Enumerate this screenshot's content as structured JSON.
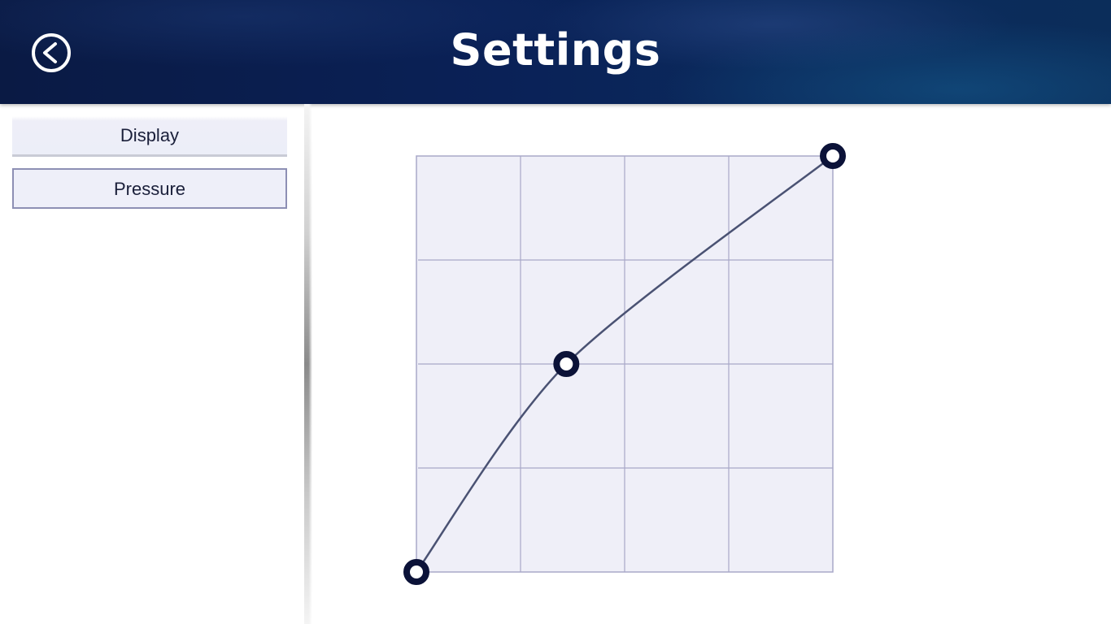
{
  "header": {
    "title": "Settings",
    "back_icon": "back-arrow-circle-icon",
    "colors": {
      "background": "#0a2157",
      "title": "#ffffff"
    }
  },
  "sidebar": {
    "items": [
      {
        "label": "Display",
        "selected": false
      },
      {
        "label": "Pressure",
        "selected": true
      }
    ]
  },
  "pressure_curve": {
    "grid_divisions": 4,
    "control_points": [
      {
        "input": 0.0,
        "output": 0.0
      },
      {
        "input": 0.36,
        "output": 0.5
      },
      {
        "input": 1.0,
        "output": 1.0
      }
    ],
    "colors": {
      "grid_fill": "#efeff8",
      "grid_lines": "#a9a8c8",
      "curve": "#4a5273",
      "handle": "#0b1238"
    }
  }
}
